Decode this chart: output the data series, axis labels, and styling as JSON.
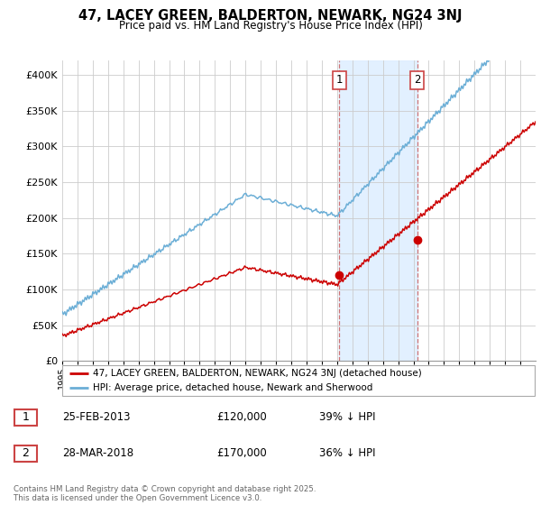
{
  "title": "47, LACEY GREEN, BALDERTON, NEWARK, NG24 3NJ",
  "subtitle": "Price paid vs. HM Land Registry's House Price Index (HPI)",
  "ylabel_vals": [
    "£0",
    "£50K",
    "£100K",
    "£150K",
    "£200K",
    "£250K",
    "£300K",
    "£350K",
    "£400K"
  ],
  "ylim": [
    0,
    420000
  ],
  "yticks": [
    0,
    50000,
    100000,
    150000,
    200000,
    250000,
    300000,
    350000,
    400000
  ],
  "xlim": [
    1995,
    2026
  ],
  "sale1_x": 2013.15,
  "sale1_y": 120000,
  "sale2_x": 2018.24,
  "sale2_y": 170000,
  "hpi_color": "#6baed6",
  "price_color": "#cc0000",
  "highlight_fill": "#ddeeff",
  "vline_color": "#cc6666",
  "legend_label_price": "47, LACEY GREEN, BALDERTON, NEWARK, NG24 3NJ (detached house)",
  "legend_label_hpi": "HPI: Average price, detached house, Newark and Sherwood",
  "footnote": "Contains HM Land Registry data © Crown copyright and database right 2025.\nThis data is licensed under the Open Government Licence v3.0.",
  "table_rows": [
    {
      "num": "1",
      "date": "25-FEB-2013",
      "price": "£120,000",
      "pct": "39% ↓ HPI"
    },
    {
      "num": "2",
      "date": "28-MAR-2018",
      "price": "£170,000",
      "pct": "36% ↓ HPI"
    }
  ]
}
